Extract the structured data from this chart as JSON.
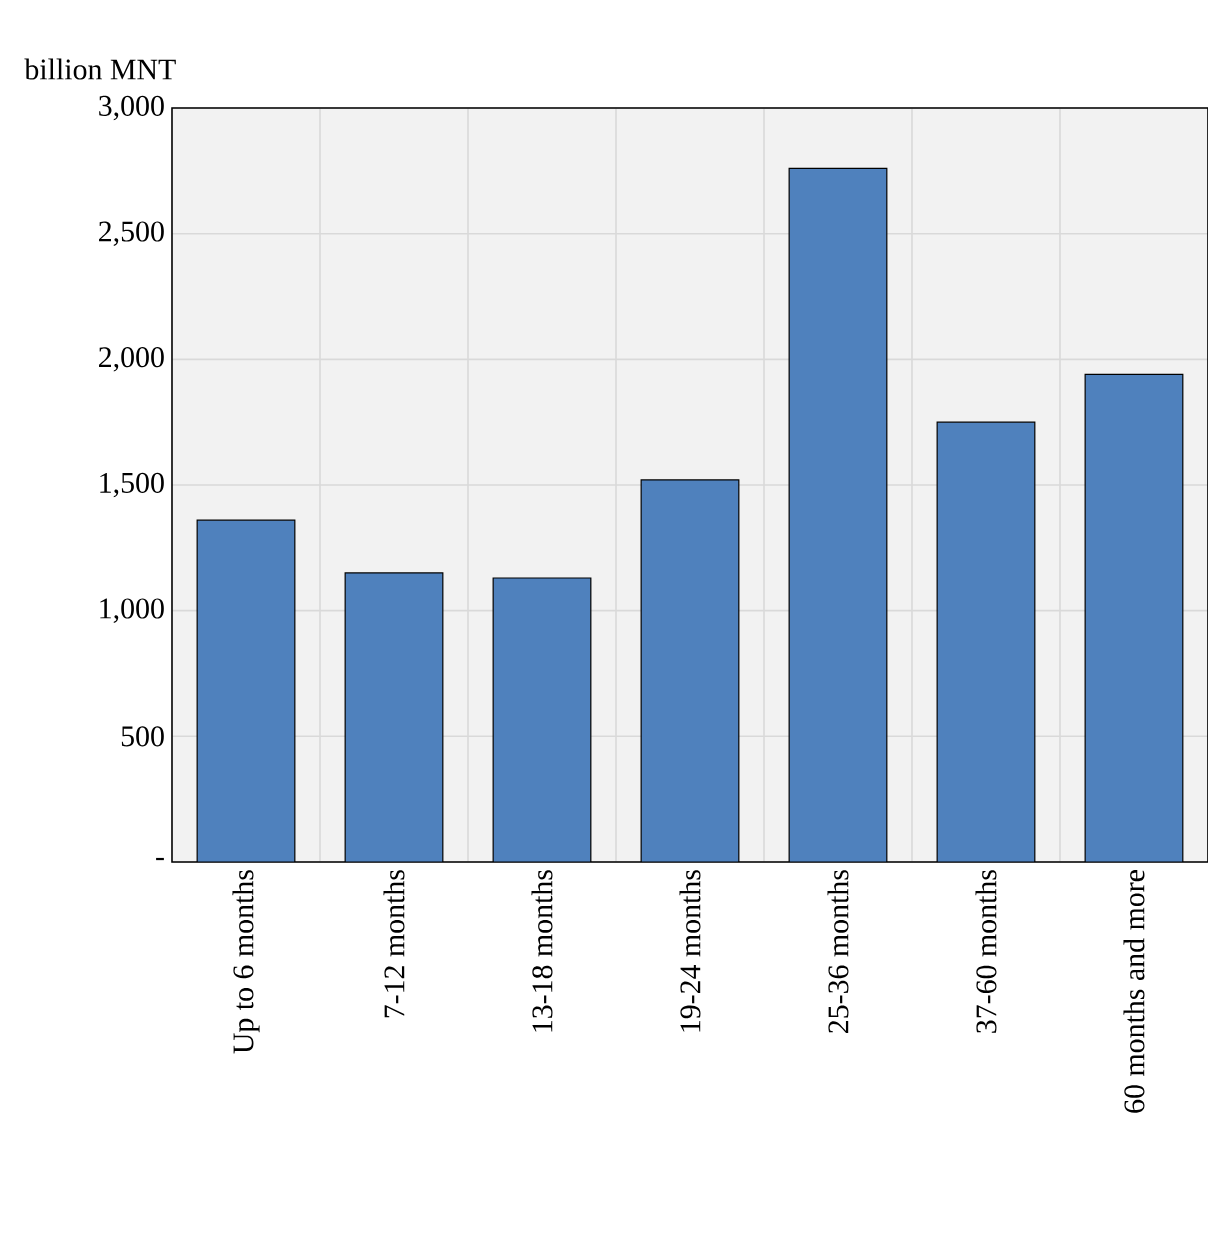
{
  "chart_data": {
    "type": "bar",
    "ylabel": "billion MNT",
    "categories": [
      "Up to 6 months",
      "7-12 months",
      "13-18 months",
      "19-24 months",
      "25-36 months",
      "37-60 months",
      "60 months and more"
    ],
    "values": [
      1360,
      1150,
      1130,
      1520,
      2760,
      1750,
      1940
    ],
    "color": "#4f81bd",
    "ylim": [
      0,
      3000
    ],
    "yticks": [
      {
        "value": 0,
        "label": "-"
      },
      500,
      {
        "value": 1000,
        "label": "1,000"
      },
      {
        "value": 1500,
        "label": "1,500"
      },
      {
        "value": 2000,
        "label": "2,000"
      },
      {
        "value": 2500,
        "label": "2,500"
      },
      {
        "value": 3000,
        "label": "3,000"
      }
    ],
    "grid": true
  }
}
